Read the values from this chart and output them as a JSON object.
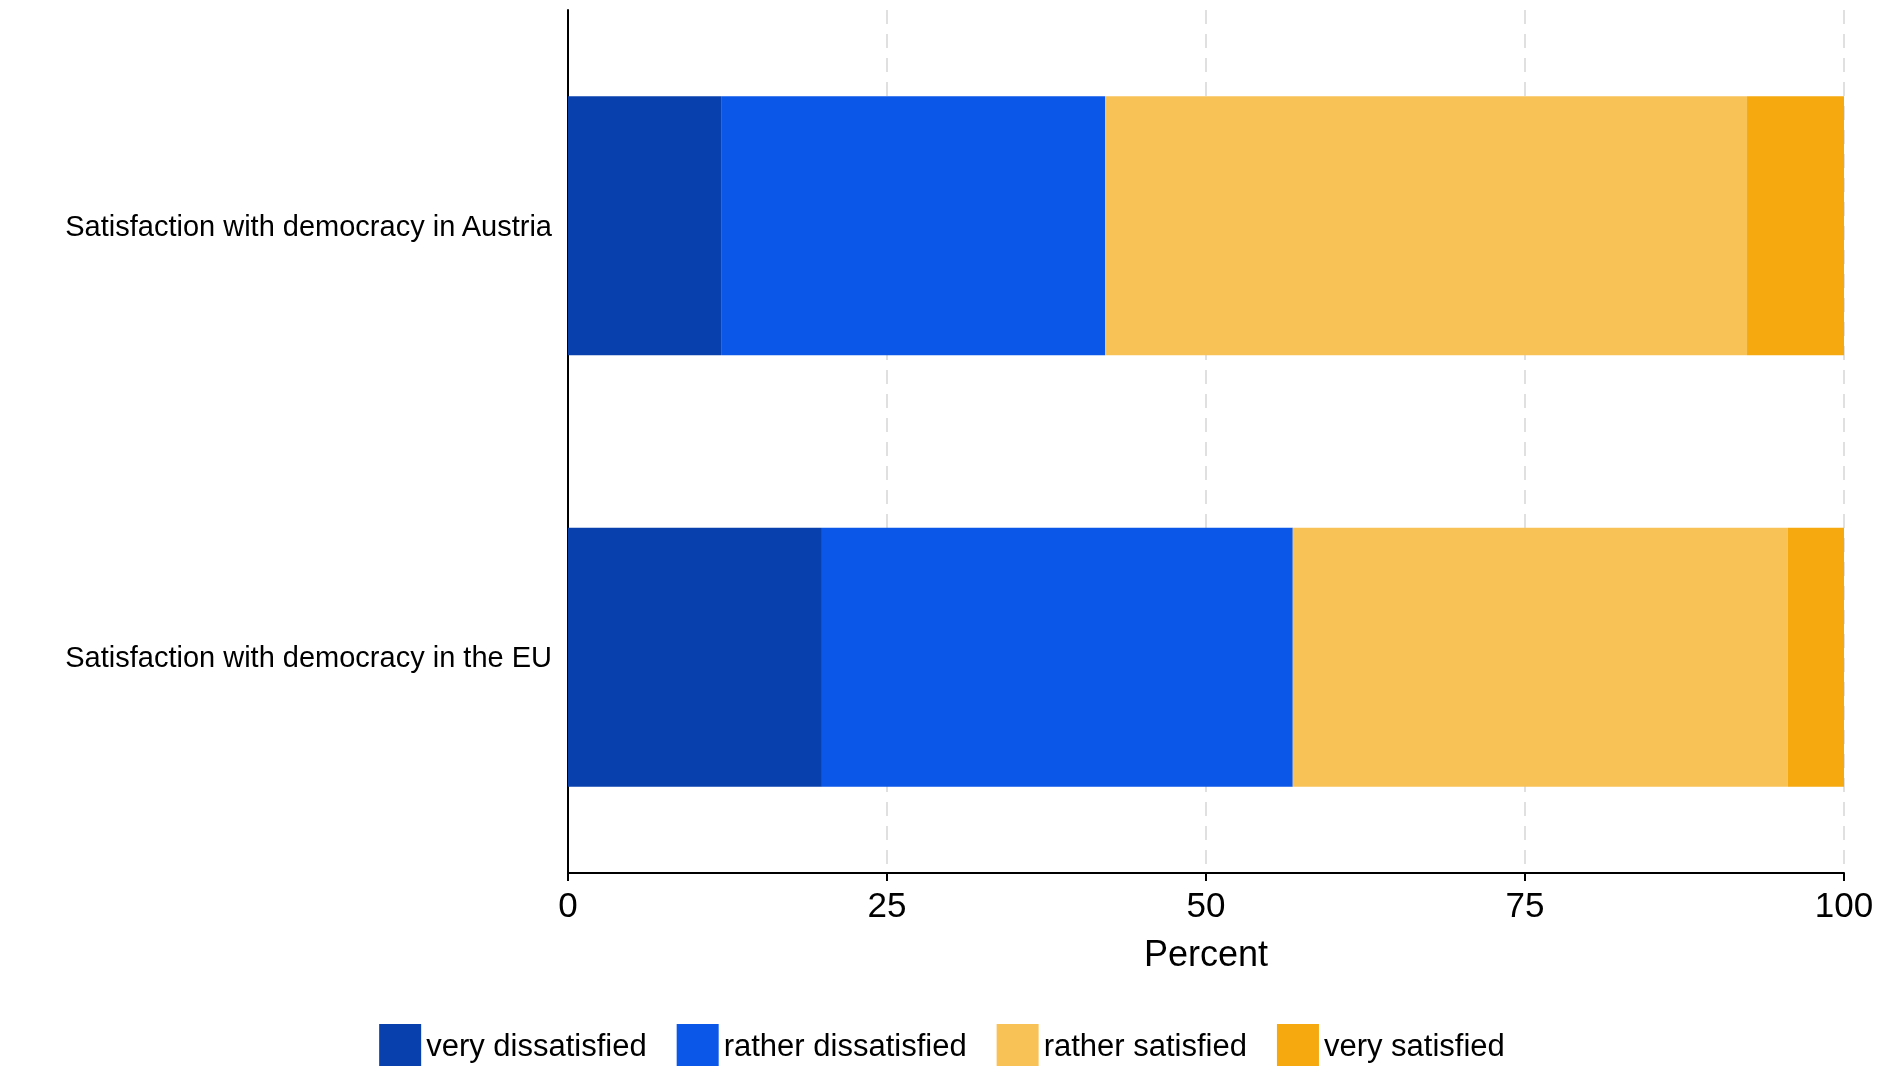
{
  "chart_data": {
    "type": "bar",
    "orientation": "horizontal",
    "stacked": true,
    "categories": [
      "Satisfaction with democracy in Austria",
      "Satisfaction with democracy in the EU"
    ],
    "series": [
      {
        "name": "very dissatisfied",
        "color": "#0841ad",
        "values": [
          12,
          19.9
        ]
      },
      {
        "name": "rather dissatisfied",
        "color": "#0b57e8",
        "values": [
          30.1,
          36.9
        ]
      },
      {
        "name": "rather satisfied",
        "color": "#f9c257",
        "values": [
          50.3,
          38.8
        ]
      },
      {
        "name": "very satisfied",
        "color": "#f6a80f",
        "values": [
          7.6,
          4.4
        ]
      }
    ],
    "xlabel": "Percent",
    "xlim": [
      0,
      100
    ],
    "xticks": [
      0,
      25,
      50,
      75,
      100
    ],
    "grid": "x",
    "legend": "bottom"
  }
}
